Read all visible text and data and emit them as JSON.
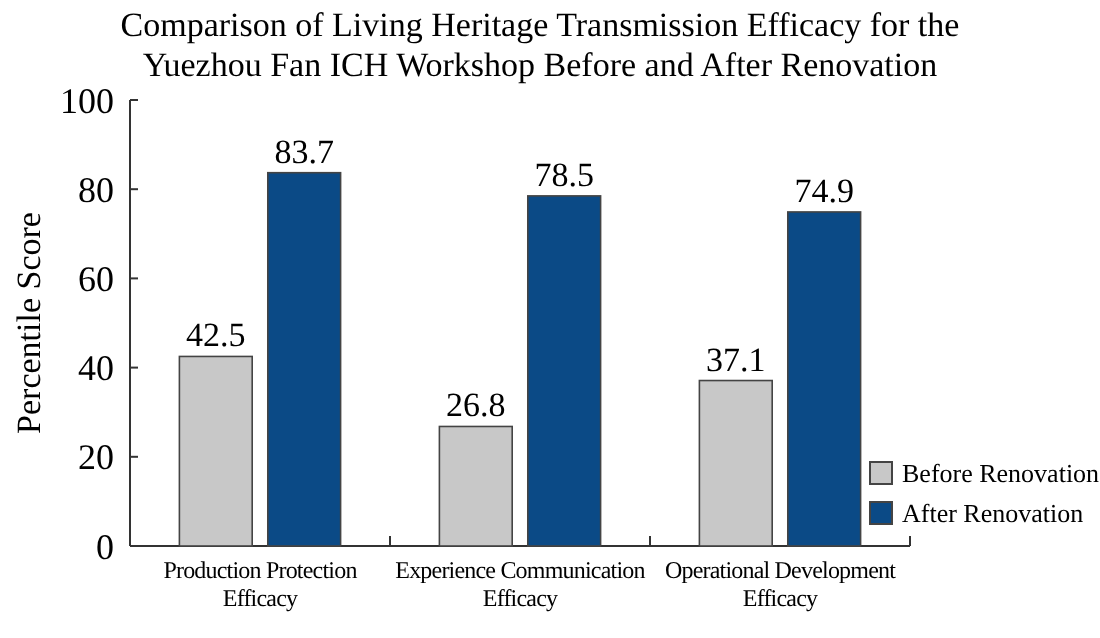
{
  "chart_data": {
    "type": "bar",
    "title": "Comparison of Living Heritage Transmission Efficacy for the Yuezhou Fan ICH Workshop Before and After Renovation",
    "ylabel": "Percentile Score",
    "categories": [
      "Production Protection Efficacy",
      "Experience Communication Efficacy",
      "Operational Development Efficacy"
    ],
    "series": [
      {
        "name": "Before Renovation",
        "color": "#c8c8c8",
        "values": [
          42.5,
          26.8,
          37.1
        ]
      },
      {
        "name": "After Renovation",
        "color": "#0b4a86",
        "values": [
          83.7,
          78.5,
          74.9
        ]
      }
    ],
    "ylim": [
      0,
      100
    ],
    "yticks": [
      0,
      20,
      40,
      60,
      80,
      100
    ],
    "data_labels": true,
    "legend": "bottom right",
    "grid": false
  }
}
